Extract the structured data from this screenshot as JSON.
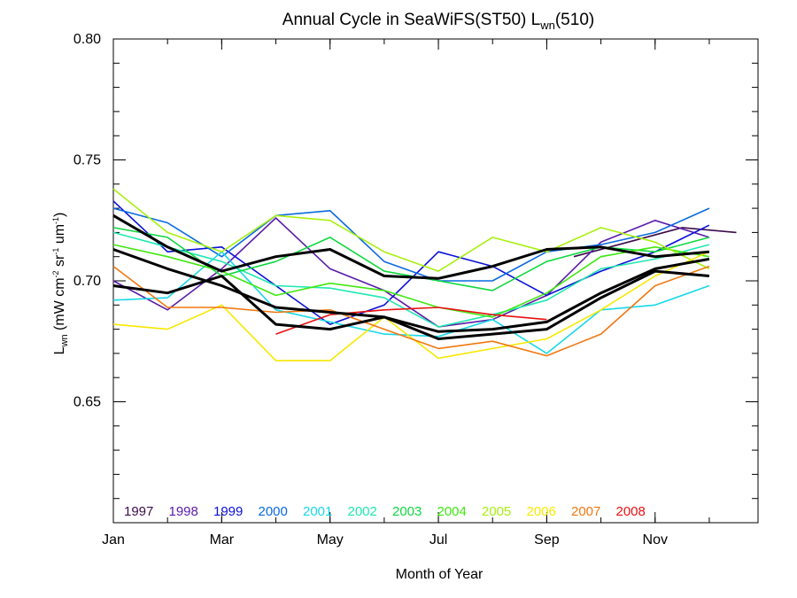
{
  "chart_data": {
    "type": "line",
    "title_main": "Annual Cycle in SeaWiFS(ST50) L",
    "title_sub": "wn",
    "title_tail": "(510)",
    "xlabel": "Month of Year",
    "ylabel_main": "L",
    "ylabel_sub": "wn",
    "ylabel_units_a": " (mW cm",
    "ylabel_units_a_sup": "-2",
    "ylabel_units_b": " sr",
    "ylabel_units_b_sup": "-1",
    "ylabel_units_c": " um",
    "ylabel_units_c_sup": "-1",
    "ylabel_units_d": ")",
    "xlim": [
      1,
      12.9
    ],
    "ylim": [
      0.6,
      0.8
    ],
    "xticks": [
      {
        "value": 1,
        "label": "Jan"
      },
      {
        "value": 3,
        "label": "Mar"
      },
      {
        "value": 5,
        "label": "May"
      },
      {
        "value": 7,
        "label": "Jul"
      },
      {
        "value": 9,
        "label": "Sep"
      },
      {
        "value": 11,
        "label": "Nov"
      }
    ],
    "yticks": [
      {
        "value": 0.65,
        "label": "0.65"
      },
      {
        "value": 0.7,
        "label": "0.70"
      },
      {
        "value": 0.75,
        "label": "0.75"
      },
      {
        "value": 0.8,
        "label": "0.80"
      }
    ],
    "legend_position": "bottom-left",
    "series": [
      {
        "name": "1997",
        "color": "#3d0c4d",
        "x": [
          9.5,
          10.5,
          11.5,
          12.5
        ],
        "values": [
          0.71,
          0.716,
          0.722,
          0.72
        ]
      },
      {
        "name": "1998",
        "color": "#5a1ca8",
        "x": [
          1,
          2,
          3,
          4,
          5,
          6,
          7,
          8,
          9,
          10,
          11,
          12
        ],
        "values": [
          0.7,
          0.688,
          0.705,
          0.726,
          0.705,
          0.696,
          0.681,
          0.684,
          0.694,
          0.716,
          0.725,
          0.718
        ]
      },
      {
        "name": "1999",
        "color": "#0b10d8",
        "x": [
          1,
          2,
          3,
          4,
          5,
          6,
          7,
          8,
          9,
          10,
          11,
          12
        ],
        "values": [
          0.733,
          0.712,
          0.714,
          0.698,
          0.682,
          0.69,
          0.712,
          0.706,
          0.694,
          0.704,
          0.712,
          0.723
        ]
      },
      {
        "name": "2000",
        "color": "#0a6ae0",
        "x": [
          1,
          2,
          3,
          4,
          5,
          6,
          7,
          8,
          9,
          10,
          11,
          12
        ],
        "values": [
          0.73,
          0.724,
          0.71,
          0.727,
          0.729,
          0.708,
          0.7,
          0.7,
          0.712,
          0.715,
          0.72,
          0.73
        ]
      },
      {
        "name": "2001",
        "color": "#18d8e8",
        "x": [
          1,
          2,
          3,
          4,
          5,
          6,
          7,
          8,
          9,
          10,
          11,
          12
        ],
        "values": [
          0.692,
          0.693,
          0.712,
          0.688,
          0.683,
          0.678,
          0.677,
          0.684,
          0.67,
          0.688,
          0.69,
          0.698
        ]
      },
      {
        "name": "2002",
        "color": "#20e8b0",
        "x": [
          1,
          2,
          3,
          4,
          5,
          6,
          7,
          8,
          9,
          10,
          11,
          12
        ],
        "values": [
          0.72,
          0.714,
          0.708,
          0.698,
          0.697,
          0.693,
          0.681,
          0.686,
          0.692,
          0.705,
          0.709,
          0.715
        ]
      },
      {
        "name": "2003",
        "color": "#10d840",
        "x": [
          1,
          2,
          3,
          4,
          5,
          6,
          7,
          8,
          9,
          10,
          11,
          12
        ],
        "values": [
          0.722,
          0.718,
          0.702,
          0.708,
          0.718,
          0.704,
          0.7,
          0.696,
          0.708,
          0.714,
          0.712,
          0.718
        ]
      },
      {
        "name": "2004",
        "color": "#40e810",
        "x": [
          1,
          2,
          3,
          4,
          5,
          6,
          7,
          8,
          9,
          10,
          11,
          12
        ],
        "values": [
          0.715,
          0.71,
          0.704,
          0.694,
          0.699,
          0.696,
          0.689,
          0.685,
          0.695,
          0.71,
          0.714,
          0.71
        ]
      },
      {
        "name": "2005",
        "color": "#a8f010",
        "x": [
          1,
          2,
          3,
          4,
          5,
          6,
          7,
          8,
          9,
          10,
          11,
          12
        ],
        "values": [
          0.738,
          0.72,
          0.712,
          0.727,
          0.725,
          0.712,
          0.704,
          0.718,
          0.712,
          0.722,
          0.716,
          0.705
        ]
      },
      {
        "name": "2006",
        "color": "#f8e800",
        "x": [
          1,
          2,
          3,
          4,
          5,
          6,
          7,
          8,
          9,
          10,
          11,
          12
        ],
        "values": [
          0.682,
          0.68,
          0.69,
          0.667,
          0.667,
          0.685,
          0.668,
          0.672,
          0.676,
          0.688,
          0.702,
          0.712
        ]
      },
      {
        "name": "2007",
        "color": "#f07810",
        "x": [
          1,
          2,
          3,
          4,
          5,
          6,
          7,
          8,
          9,
          10,
          11,
          12
        ],
        "values": [
          0.706,
          0.689,
          0.689,
          0.687,
          0.688,
          0.68,
          0.672,
          0.675,
          0.669,
          0.678,
          0.698,
          0.706
        ]
      },
      {
        "name": "2008",
        "color": "#e81010",
        "x": [
          4,
          5,
          6,
          7,
          8,
          9
        ],
        "values": [
          0.678,
          0.686,
          0.688,
          0.689,
          0.686,
          0.684
        ]
      },
      {
        "name": "",
        "color": "#000000",
        "bold": true,
        "x": [
          1,
          2,
          3,
          4,
          5,
          6,
          7,
          8,
          9,
          10,
          11,
          12
        ],
        "values": [
          0.727,
          0.714,
          0.704,
          0.71,
          0.713,
          0.702,
          0.701,
          0.706,
          0.713,
          0.714,
          0.71,
          0.712
        ]
      },
      {
        "name": "",
        "color": "#000000",
        "bold": true,
        "x": [
          1,
          2,
          3,
          4,
          5,
          6,
          7,
          8,
          9,
          10,
          11,
          12
        ],
        "values": [
          0.713,
          0.705,
          0.698,
          0.689,
          0.687,
          0.685,
          0.679,
          0.68,
          0.683,
          0.695,
          0.705,
          0.709
        ]
      },
      {
        "name": "",
        "color": "#000000",
        "bold": true,
        "x": [
          1,
          2,
          3,
          4,
          5,
          6,
          7,
          8,
          9,
          10,
          11,
          12
        ],
        "values": [
          0.698,
          0.695,
          0.702,
          0.682,
          0.68,
          0.685,
          0.676,
          0.678,
          0.68,
          0.693,
          0.704,
          0.702
        ]
      }
    ]
  }
}
